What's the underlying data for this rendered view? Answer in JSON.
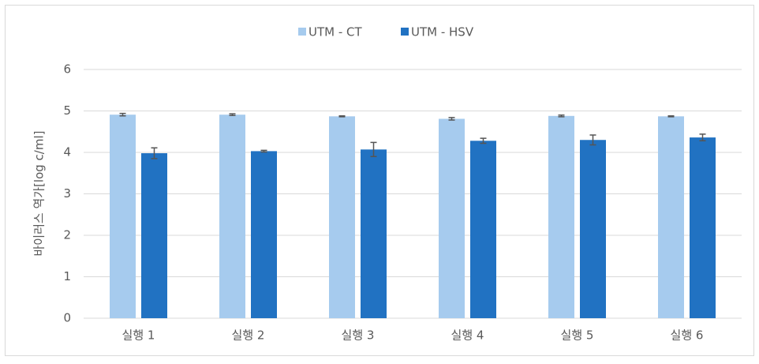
{
  "chart_data": {
    "type": "bar",
    "categories": [
      "실행 1",
      "실행 2",
      "실행 3",
      "실행 4",
      "실행 5",
      "실행 6"
    ],
    "series": [
      {
        "name": "UTM - CT",
        "color": "#a6cbee",
        "values": [
          4.91,
          4.91,
          4.87,
          4.81,
          4.88,
          4.87
        ],
        "errors": [
          0.03,
          0.02,
          0.01,
          0.03,
          0.02,
          0.01
        ]
      },
      {
        "name": "UTM - HSV",
        "color": "#2172c2",
        "values": [
          3.98,
          4.03,
          4.07,
          4.28,
          4.3,
          4.36
        ],
        "errors": [
          0.13,
          0.02,
          0.17,
          0.06,
          0.12,
          0.08
        ]
      }
    ],
    "ylabel": "바이러스 역가[log c/ml]",
    "ylim": [
      0,
      6
    ],
    "yticks": [
      0,
      1,
      2,
      3,
      4,
      5,
      6
    ],
    "grid": true,
    "legend": "top",
    "error_color": "#555555"
  }
}
